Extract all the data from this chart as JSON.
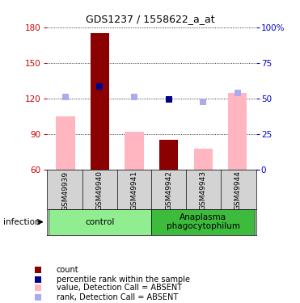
{
  "title": "GDS1237 / 1558622_a_at",
  "samples": [
    "GSM49939",
    "GSM49940",
    "GSM49941",
    "GSM49942",
    "GSM49943",
    "GSM49944"
  ],
  "value_bars": [
    105,
    175,
    92,
    85,
    78,
    125
  ],
  "value_absent": [
    true,
    false,
    true,
    false,
    true,
    true
  ],
  "rank_points": [
    121,
    130,
    121,
    119,
    117,
    125
  ],
  "rank_absent": [
    true,
    false,
    true,
    false,
    true,
    true
  ],
  "ylim": [
    60,
    180
  ],
  "yticks": [
    60,
    90,
    120,
    150,
    180
  ],
  "y2lim": [
    0,
    100
  ],
  "y2ticks": [
    0,
    25,
    50,
    75,
    100
  ],
  "y2labels": [
    "0",
    "25",
    "50",
    "75",
    "100%"
  ],
  "groups": [
    {
      "label": "control",
      "start": 0,
      "end": 3
    },
    {
      "label": "Anaplasma\nphagocytophilum",
      "start": 3,
      "end": 6
    }
  ],
  "control_color": "#90ee90",
  "anaplasma_color": "#3dbb3d",
  "bar_color_absent": "#ffb6c1",
  "bar_color_present": "#8b0000",
  "rank_color_absent": "#aaaaee",
  "rank_color_present": "#00008b",
  "dot_size": 30,
  "bar_width": 0.55,
  "left_axis_color": "#cc0000",
  "right_axis_color": "#0000cc",
  "xlabel_area_color": "#d3d3d3",
  "legend_items": [
    {
      "label": "count",
      "color": "#8b0000"
    },
    {
      "label": "percentile rank within the sample",
      "color": "#00008b"
    },
    {
      "label": "value, Detection Call = ABSENT",
      "color": "#ffb6c1"
    },
    {
      "label": "rank, Detection Call = ABSENT",
      "color": "#aaaaee"
    }
  ]
}
